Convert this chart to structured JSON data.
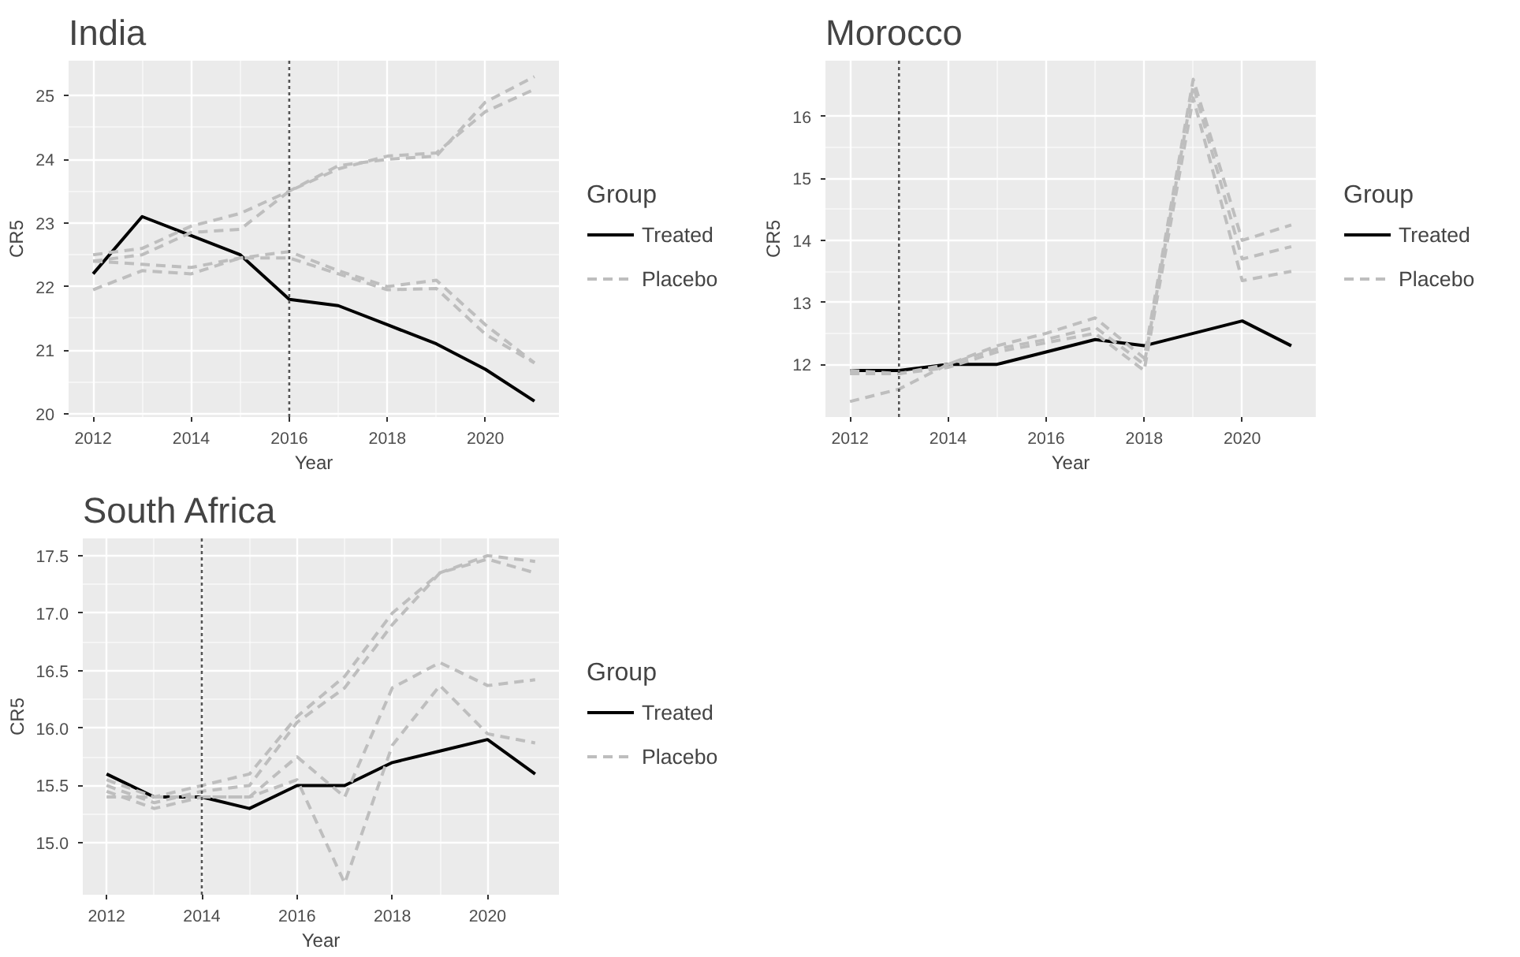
{
  "chart_data": [
    {
      "type": "line",
      "title": "India",
      "xlabel": "Year",
      "ylabel": "CR5",
      "legend_title": "Group",
      "legend": "right",
      "grid": true,
      "x": [
        2012,
        2013,
        2014,
        2015,
        2016,
        2017,
        2018,
        2019,
        2020,
        2021
      ],
      "xlim": [
        2011.5,
        2021.5
      ],
      "xticks": [
        2012,
        2014,
        2016,
        2018,
        2020
      ],
      "ylim": [
        19.95,
        25.55
      ],
      "yticks": [
        20,
        21,
        22,
        23,
        24,
        25
      ],
      "ref_lines": [
        {
          "axis": "x",
          "value": 2016,
          "color": "#555555",
          "line_style": "dotted"
        }
      ],
      "series": [
        {
          "name": "Treated",
          "color": "#000000",
          "line_style": "solid",
          "values": [
            22.2,
            23.1,
            22.8,
            22.5,
            21.8,
            21.7,
            21.4,
            21.1,
            20.7,
            20.2
          ]
        },
        {
          "name": "Placebo",
          "color": "#bebebe",
          "line_style": "dashed",
          "values": [
            22.5,
            22.6,
            22.95,
            23.15,
            23.5,
            23.9,
            24.0,
            24.05,
            24.9,
            25.3
          ]
        },
        {
          "color": "#bebebe",
          "line_style": "dashed",
          "values": [
            22.4,
            22.5,
            22.85,
            22.9,
            23.5,
            23.85,
            24.05,
            24.1,
            24.75,
            25.1
          ]
        },
        {
          "color": "#bebebe",
          "line_style": "dashed",
          "values": [
            22.4,
            22.35,
            22.3,
            22.45,
            22.55,
            22.25,
            22.0,
            22.1,
            21.4,
            20.8
          ]
        },
        {
          "color": "#bebebe",
          "line_style": "dashed",
          "values": [
            21.95,
            22.25,
            22.2,
            22.45,
            22.45,
            22.2,
            21.95,
            21.97,
            21.25,
            20.8
          ]
        }
      ]
    },
    {
      "type": "line",
      "title": "Morocco",
      "xlabel": "Year",
      "ylabel": "CR5",
      "legend_title": "Group",
      "legend": "right",
      "grid": true,
      "x": [
        2012,
        2013,
        2014,
        2015,
        2016,
        2017,
        2018,
        2019,
        2020,
        2021
      ],
      "xlim": [
        2011.5,
        2021.5
      ],
      "xticks": [
        2012,
        2014,
        2016,
        2018,
        2020
      ],
      "ylim": [
        11.15,
        16.9
      ],
      "yticks": [
        12,
        13,
        14,
        15,
        16
      ],
      "ref_lines": [
        {
          "axis": "x",
          "value": 2013,
          "color": "#555555",
          "line_style": "dotted"
        }
      ],
      "series": [
        {
          "name": "Treated",
          "color": "#000000",
          "line_style": "solid",
          "values": [
            11.9,
            11.9,
            12.0,
            12.0,
            12.2,
            12.4,
            12.3,
            12.5,
            12.7,
            12.3
          ]
        },
        {
          "name": "Placebo",
          "color": "#bebebe",
          "line_style": "dashed",
          "values": [
            11.4,
            11.6,
            12.0,
            12.3,
            12.5,
            12.75,
            12.1,
            16.6,
            14.0,
            14.25
          ]
        },
        {
          "color": "#bebebe",
          "line_style": "dashed",
          "values": [
            11.9,
            11.85,
            12.0,
            12.25,
            12.4,
            12.6,
            12.0,
            16.5,
            13.7,
            13.9
          ]
        },
        {
          "color": "#bebebe",
          "line_style": "dashed",
          "values": [
            11.85,
            11.85,
            11.95,
            12.2,
            12.35,
            12.5,
            11.9,
            16.3,
            13.35,
            13.5
          ]
        }
      ]
    },
    {
      "type": "line",
      "title": "South Africa",
      "xlabel": "Year",
      "ylabel": "CR5",
      "legend_title": "Group",
      "legend": "right",
      "grid": true,
      "x": [
        2012,
        2013,
        2014,
        2015,
        2016,
        2017,
        2018,
        2019,
        2020,
        2021
      ],
      "xlim": [
        2011.5,
        2021.5
      ],
      "xticks": [
        2012,
        2014,
        2016,
        2018,
        2020
      ],
      "ylim": [
        14.55,
        17.65
      ],
      "yticks": [
        {
          "value": 15,
          "label": "15.0"
        },
        {
          "value": 15.5,
          "label": "15.5"
        },
        {
          "value": 16,
          "label": "16.0"
        },
        {
          "value": 16.5,
          "label": "16.5"
        },
        {
          "value": 17,
          "label": "17.0"
        },
        {
          "value": 17.5,
          "label": "17.5"
        }
      ],
      "ref_lines": [
        {
          "axis": "x",
          "value": 2014,
          "color": "#555555",
          "line_style": "dotted"
        }
      ],
      "series": [
        {
          "name": "Treated",
          "color": "#000000",
          "line_style": "solid",
          "values": [
            15.6,
            15.4,
            15.4,
            15.3,
            15.5,
            15.5,
            15.7,
            15.8,
            15.9,
            15.6
          ]
        },
        {
          "name": "Placebo",
          "color": "#bebebe",
          "line_style": "dashed",
          "values": [
            15.55,
            15.4,
            15.5,
            15.6,
            16.1,
            16.45,
            17.0,
            17.35,
            17.5,
            17.45
          ]
        },
        {
          "color": "#bebebe",
          "line_style": "dashed",
          "values": [
            15.5,
            15.35,
            15.45,
            15.5,
            16.05,
            16.35,
            16.9,
            17.35,
            17.47,
            17.35
          ]
        },
        {
          "color": "#bebebe",
          "line_style": "dashed",
          "values": [
            15.4,
            15.4,
            15.4,
            15.4,
            15.75,
            15.4,
            16.35,
            16.57,
            16.37,
            16.42
          ]
        },
        {
          "color": "#bebebe",
          "line_style": "dashed",
          "values": [
            15.45,
            15.3,
            15.4,
            15.4,
            15.55,
            14.65,
            15.85,
            16.37,
            15.95,
            15.87
          ]
        }
      ]
    }
  ]
}
